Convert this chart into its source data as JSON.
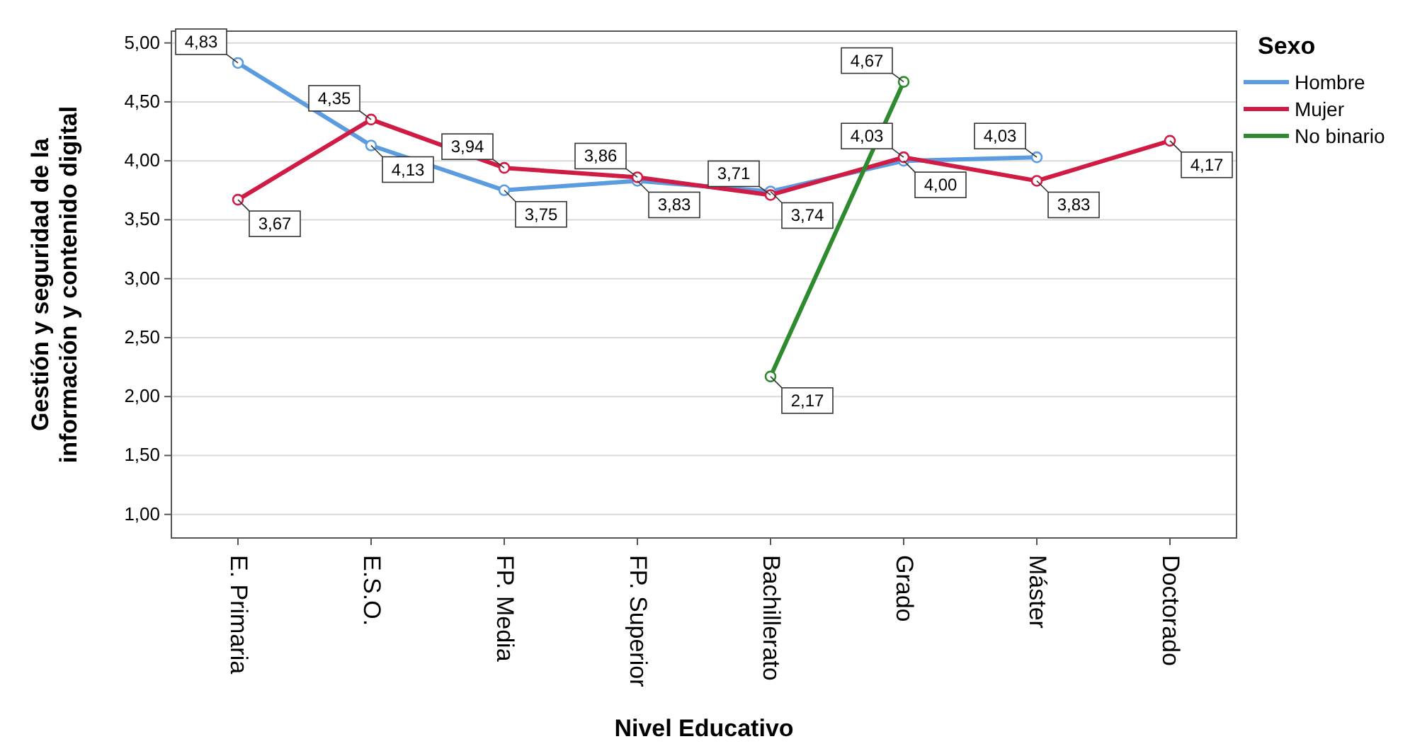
{
  "chart_data": {
    "type": "line",
    "xlabel": "Nivel Educativo",
    "ylabel": "Gestión y seguridad de la\ninformación y contenido digital",
    "legend_title": "Sexo",
    "legend": "top right",
    "grid": "y",
    "marker": "circle",
    "line_style": "solid",
    "categories": [
      "E. Primaria",
      "E.S.O.",
      "FP. Media",
      "FP. Superior",
      "Bachillerato",
      "Grado",
      "Máster",
      "Doctorado"
    ],
    "ylim": [
      0.8,
      5.1
    ],
    "yticks": [
      {
        "value": 1,
        "label": "1,00"
      },
      {
        "value": 1.5,
        "label": "1,50"
      },
      {
        "value": 2,
        "label": "2,00"
      },
      {
        "value": 2.5,
        "label": "2,50"
      },
      {
        "value": 3,
        "label": "3,00"
      },
      {
        "value": 3.5,
        "label": "3,50"
      },
      {
        "value": 4,
        "label": "4,00"
      },
      {
        "value": 4.5,
        "label": "4,50"
      },
      {
        "value": 5,
        "label": "5,00"
      }
    ],
    "series": [
      {
        "name": "Hombre",
        "color": "#5b9be0",
        "values": [
          4.83,
          4.13,
          3.75,
          3.83,
          3.74,
          4.0,
          4.03,
          null
        ],
        "value_labels": [
          "4,83",
          "4,13",
          "3,75",
          "3,83",
          "3,74",
          "4,00",
          "4,03",
          null
        ]
      },
      {
        "name": "Mujer",
        "color": "#d01c45",
        "values": [
          3.67,
          4.35,
          3.94,
          3.86,
          3.71,
          4.03,
          3.83,
          4.17
        ],
        "value_labels": [
          "3,67",
          "4,35",
          "3,94",
          "3,86",
          "3,71",
          "4,03",
          "3,83",
          "4,17"
        ]
      },
      {
        "name": "No binario",
        "color": "#2e8a2e",
        "values": [
          null,
          null,
          null,
          null,
          2.17,
          4.67,
          null,
          null
        ],
        "value_labels": [
          null,
          null,
          null,
          null,
          "2,17",
          "4,67",
          null,
          null
        ]
      }
    ]
  }
}
